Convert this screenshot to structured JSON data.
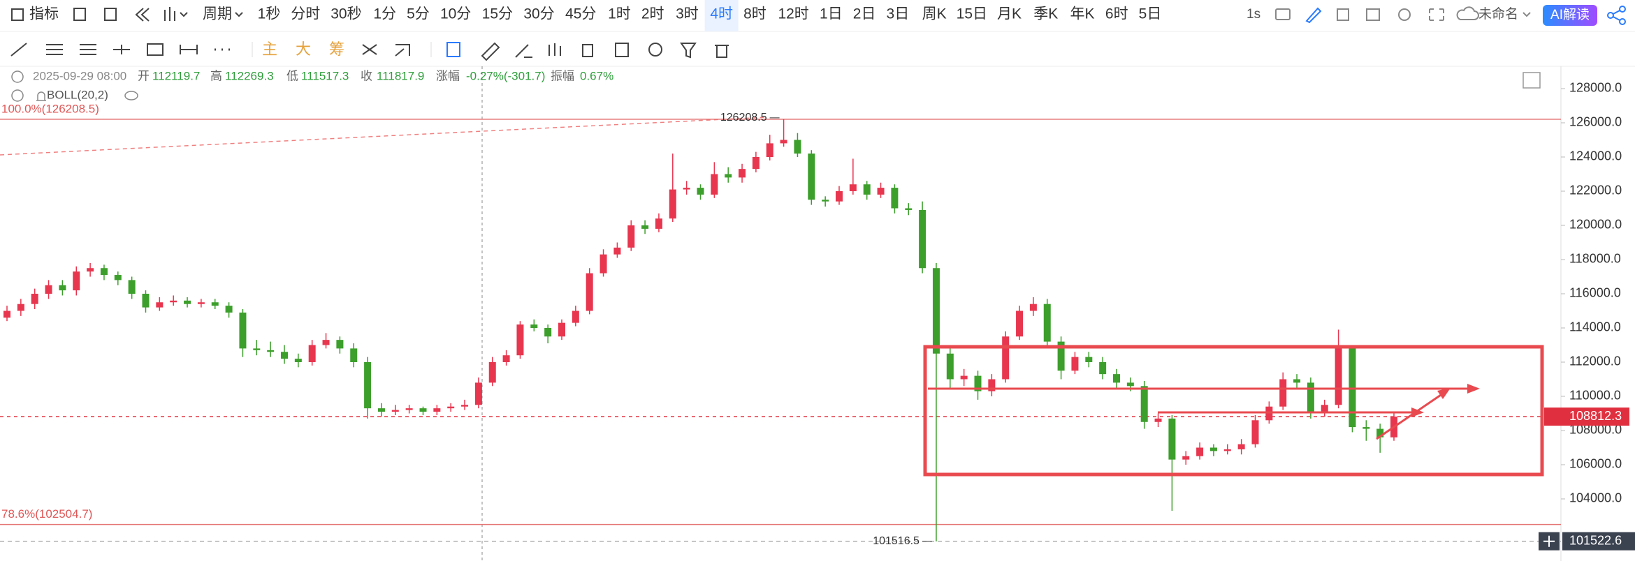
{
  "toolbar": {
    "indicator": "指标",
    "period": "周期",
    "intervals": [
      "1秒",
      "分时",
      "30秒",
      "1分",
      "5分",
      "10分",
      "15分",
      "30分",
      "45分",
      "1时",
      "2时",
      "3时",
      "4时",
      "8时",
      "12时",
      "1日",
      "2日",
      "3日",
      "周K",
      "15日",
      "月K",
      "季K",
      "年K",
      "6时",
      "5日"
    ],
    "interval": "1s",
    "layout_name": "未命名",
    "ai_button": "AI解读"
  },
  "drawing_toolbar": {
    "chips": [
      "主",
      "大",
      "筹"
    ]
  },
  "chart_data": {
    "type": "candlestick",
    "info": {
      "datetime": "2025-09-29 08:00",
      "open_label": "开",
      "open": 112119.7,
      "high_label": "高",
      "high": 112269.3,
      "low_label": "低",
      "low": 111517.3,
      "close_label": "收",
      "close": 111817.9,
      "change_label": "涨幅",
      "change": "-0.27%(-301.7)",
      "amplitude_label": "振幅",
      "amplitude": "0.67%"
    },
    "indicator": "BOLL(20,2)",
    "candles": [
      [
        114600,
        115300,
        114400,
        115000
      ],
      [
        115000,
        115700,
        114700,
        115400
      ],
      [
        115400,
        116300,
        115100,
        116000
      ],
      [
        116000,
        116800,
        115700,
        116500
      ],
      [
        116500,
        116800,
        115900,
        116200
      ],
      [
        116200,
        117600,
        115900,
        117300
      ],
      [
        117300,
        117800,
        117000,
        117500
      ],
      [
        117500,
        117700,
        116800,
        117100
      ],
      [
        117100,
        117300,
        116500,
        116800
      ],
      [
        116800,
        117000,
        115700,
        116000
      ],
      [
        116000,
        116200,
        114900,
        115200
      ],
      [
        115200,
        115800,
        115000,
        115500
      ],
      [
        115500,
        115900,
        115300,
        115600
      ],
      [
        115600,
        115800,
        115200,
        115400
      ],
      [
        115400,
        115700,
        115200,
        115500
      ],
      [
        115500,
        115700,
        115100,
        115300
      ],
      [
        115300,
        115500,
        114600,
        114900
      ],
      [
        114900,
        115100,
        112300,
        112800
      ],
      [
        112800,
        113300,
        112400,
        112700
      ],
      [
        112700,
        113200,
        112300,
        112600
      ],
      [
        112600,
        113000,
        111900,
        112200
      ],
      [
        112200,
        112500,
        111700,
        112000
      ],
      [
        112000,
        113300,
        111800,
        113000
      ],
      [
        113000,
        113700,
        112800,
        113300
      ],
      [
        113300,
        113500,
        112500,
        112800
      ],
      [
        112800,
        113100,
        111700,
        112000
      ],
      [
        112000,
        112300,
        108700,
        109300
      ],
      [
        109300,
        109600,
        108800,
        109100
      ],
      [
        109100,
        109500,
        108900,
        109200
      ],
      [
        109200,
        109500,
        109000,
        109300
      ],
      [
        109300,
        109400,
        108900,
        109100
      ],
      [
        109100,
        109500,
        108900,
        109300
      ],
      [
        109300,
        109600,
        109100,
        109400
      ],
      [
        109400,
        109800,
        109200,
        109500
      ],
      [
        109500,
        111100,
        109300,
        110800
      ],
      [
        110800,
        112300,
        110600,
        112000
      ],
      [
        112000,
        112700,
        111800,
        112400
      ],
      [
        112400,
        114400,
        112200,
        114200
      ],
      [
        114200,
        114500,
        113800,
        114000
      ],
      [
        114000,
        114200,
        113100,
        113500
      ],
      [
        113500,
        114500,
        113300,
        114300
      ],
      [
        114300,
        115300,
        114100,
        115000
      ],
      [
        115000,
        117500,
        114800,
        117200
      ],
      [
        117200,
        118600,
        117000,
        118300
      ],
      [
        118300,
        119000,
        118100,
        118700
      ],
      [
        118700,
        120300,
        118500,
        120000
      ],
      [
        120000,
        120300,
        119500,
        119800
      ],
      [
        119800,
        120700,
        119600,
        120400
      ],
      [
        120400,
        124200,
        120200,
        122100
      ],
      [
        122100,
        122600,
        121800,
        122200
      ],
      [
        122200,
        122400,
        121500,
        121800
      ],
      [
        121800,
        123700,
        121600,
        123000
      ],
      [
        123000,
        123400,
        122500,
        122800
      ],
      [
        122800,
        123600,
        122500,
        123300
      ],
      [
        123300,
        124300,
        123100,
        124000
      ],
      [
        124000,
        125300,
        123800,
        124800
      ],
      [
        124800,
        126208.5,
        124600,
        125000
      ],
      [
        125000,
        125400,
        124000,
        124200
      ],
      [
        124200,
        124400,
        121200,
        121500
      ],
      [
        121500,
        121700,
        121100,
        121400
      ],
      [
        121400,
        122300,
        121200,
        122000
      ],
      [
        122000,
        123900,
        121800,
        122400
      ],
      [
        122400,
        122600,
        121500,
        121800
      ],
      [
        121800,
        122500,
        121600,
        122200
      ],
      [
        122200,
        122400,
        120700,
        121000
      ],
      [
        121000,
        121300,
        120600,
        120900
      ],
      [
        120900,
        121400,
        117200,
        117500
      ],
      [
        117500,
        117800,
        101516.5,
        112500
      ],
      [
        112500,
        113000,
        110500,
        111000
      ],
      [
        111000,
        111600,
        110600,
        111200
      ],
      [
        111200,
        111500,
        109800,
        110300
      ],
      [
        110300,
        111300,
        110000,
        111000
      ],
      [
        111000,
        113800,
        110800,
        113500
      ],
      [
        113500,
        115300,
        113300,
        115000
      ],
      [
        115000,
        115800,
        114700,
        115400
      ],
      [
        115400,
        115700,
        112900,
        113200
      ],
      [
        113200,
        113500,
        111000,
        111500
      ],
      [
        111500,
        112600,
        111300,
        112300
      ],
      [
        112300,
        112600,
        111700,
        112000
      ],
      [
        112000,
        112300,
        111000,
        111300
      ],
      [
        111300,
        111600,
        110500,
        110800
      ],
      [
        110800,
        111100,
        110300,
        110600
      ],
      [
        110600,
        110900,
        108100,
        108500
      ],
      [
        108500,
        109000,
        108200,
        108700
      ],
      [
        108700,
        108900,
        103300,
        106300
      ],
      [
        106300,
        106800,
        106000,
        106500
      ],
      [
        106500,
        107300,
        106300,
        107000
      ],
      [
        107000,
        107200,
        106500,
        106800
      ],
      [
        106800,
        107200,
        106600,
        106900
      ],
      [
        106900,
        107500,
        106600,
        107200
      ],
      [
        107200,
        108900,
        107000,
        108600
      ],
      [
        108600,
        109700,
        108400,
        109400
      ],
      [
        109400,
        111400,
        109200,
        111000
      ],
      [
        111000,
        111300,
        110500,
        110800
      ],
      [
        110800,
        111100,
        108700,
        109000
      ],
      [
        109000,
        109800,
        108800,
        109500
      ],
      [
        109500,
        113900,
        109300,
        112800
      ],
      [
        112800,
        113000,
        107900,
        108200
      ],
      [
        108200,
        108600,
        107400,
        108100
      ],
      [
        108100,
        108400,
        106700,
        107600
      ],
      [
        107600,
        109000,
        107400,
        108812.3
      ]
    ],
    "up_color": "#e8364f",
    "down_color": "#3c9f2b",
    "ylim": [
      100367,
      129306
    ],
    "yticks": [
      {
        "value": 104000,
        "label": "104000.0"
      },
      {
        "value": 106000,
        "label": "106000.0"
      },
      {
        "value": 108000,
        "label": "108000.0"
      },
      {
        "value": 110000,
        "label": "110000.0"
      },
      {
        "value": 112000,
        "label": "112000.0"
      },
      {
        "value": 114000,
        "label": "114000.0"
      },
      {
        "value": 116000,
        "label": "116000.0"
      },
      {
        "value": 118000,
        "label": "118000.0"
      },
      {
        "value": 120000,
        "label": "120000.0"
      },
      {
        "value": 122000,
        "label": "122000.0"
      },
      {
        "value": 124000,
        "label": "124000.0"
      },
      {
        "value": 126000,
        "label": "126000.0"
      },
      {
        "value": 128000,
        "label": "128000.0"
      }
    ],
    "fib_levels": [
      {
        "value": 126208.5,
        "label": "100.0%(126208.5)"
      },
      {
        "value": 102504.7,
        "label": "78.6%(102504.7)"
      }
    ],
    "high_marker": 126208.5,
    "low_marker": 101516.5,
    "last_price": 108812.3,
    "crosshair_price": 101522.6
  }
}
